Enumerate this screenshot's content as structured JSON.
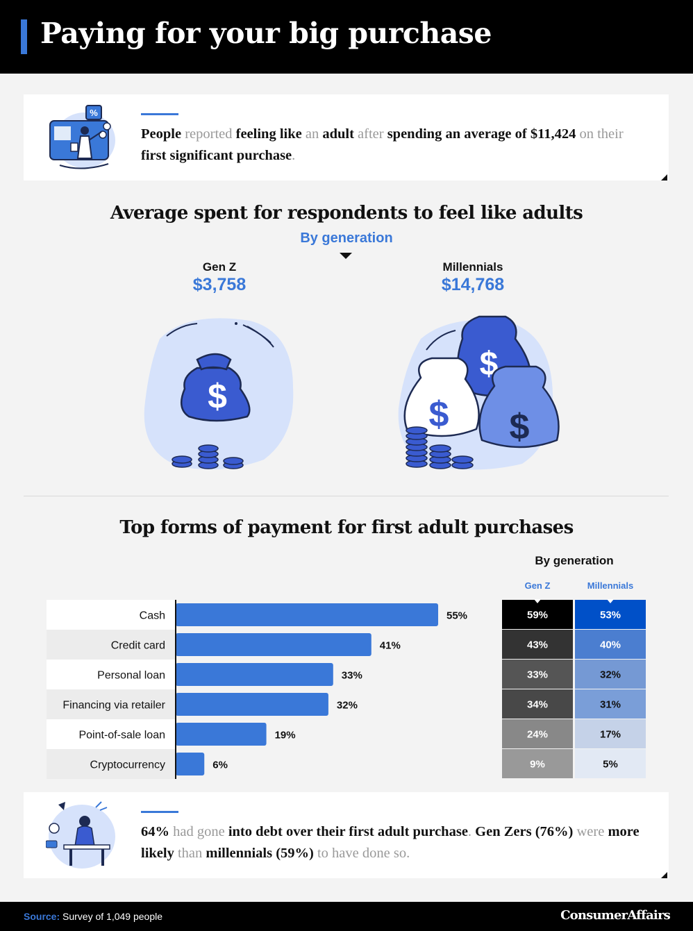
{
  "header": {
    "title": "Paying for your big purchase",
    "accent_color": "#3a78d8"
  },
  "intro_card": {
    "icon": "shopper-dashboard-icon",
    "segments": [
      {
        "t": "People",
        "b": true
      },
      {
        "t": " reported ",
        "b": false
      },
      {
        "t": "feeling like",
        "b": true
      },
      {
        "t": " an ",
        "b": false
      },
      {
        "t": "adult",
        "b": true
      },
      {
        "t": " after ",
        "b": false
      },
      {
        "t": "spending an average of $11,424",
        "b": true
      },
      {
        "t": " on their ",
        "b": false
      },
      {
        "t": "first significant purchase",
        "b": true
      },
      {
        "t": ".",
        "b": false
      }
    ]
  },
  "spend_section": {
    "title": "Average spent for respondents to feel like adults",
    "subtitle": "By generation",
    "generations": [
      {
        "label": "Gen Z",
        "value": "$3,758",
        "icon": "money-bag-icon"
      },
      {
        "label": "Millennials",
        "value": "$14,768",
        "icon": "money-bags-icon"
      }
    ]
  },
  "payment_section": {
    "title": "Top forms of payment for first adult purchases",
    "by_generation_label": "By generation",
    "columns": [
      "Gen Z",
      "Millennials"
    ]
  },
  "chart_data": {
    "type": "bar",
    "orientation": "horizontal",
    "categories": [
      "Cash",
      "Credit card",
      "Personal loan",
      "Financing via retailer",
      "Point-of-sale loan",
      "Cryptocurrency"
    ],
    "values": [
      55,
      41,
      33,
      32,
      19,
      6
    ],
    "value_labels": [
      "55%",
      "41%",
      "33%",
      "32%",
      "19%",
      "6%"
    ],
    "bar_color": "#3a78d8",
    "table": {
      "columns": [
        "Gen Z",
        "Millennials"
      ],
      "gen_z": [
        59,
        43,
        33,
        34,
        24,
        9
      ],
      "gen_z_labels": [
        "59%",
        "43%",
        "33%",
        "34%",
        "24%",
        "9%"
      ],
      "gen_z_colors": [
        "#000000",
        "#333333",
        "#555555",
        "#484848",
        "#888888",
        "#999999"
      ],
      "millennials": [
        53,
        40,
        32,
        31,
        17,
        5
      ],
      "millennials_labels": [
        "53%",
        "40%",
        "32%",
        "31%",
        "17%",
        "5%"
      ],
      "millennials_colors": [
        "#0050c8",
        "#4b7ed0",
        "#7599d4",
        "#7a9ed8",
        "#c5d2e8",
        "#e2e9f4"
      ]
    }
  },
  "debt_card": {
    "icon": "stressed-person-desk-icon",
    "segments": [
      {
        "t": "64%",
        "b": true
      },
      {
        "t": " had gone ",
        "b": false
      },
      {
        "t": "into debt over their first adult purchase",
        "b": true
      },
      {
        "t": ". ",
        "b": false
      },
      {
        "t": "Gen Zers (76%)",
        "b": true
      },
      {
        "t": " were ",
        "b": false
      },
      {
        "t": "more likely",
        "b": true
      },
      {
        "t": " than ",
        "b": false
      },
      {
        "t": "millennials (59%)",
        "b": true
      },
      {
        "t": " to have done so.",
        "b": false
      }
    ]
  },
  "footer": {
    "source_label": "Source:",
    "source_text": " Survey of 1,049 people",
    "brand": "ConsumerAffairs"
  }
}
